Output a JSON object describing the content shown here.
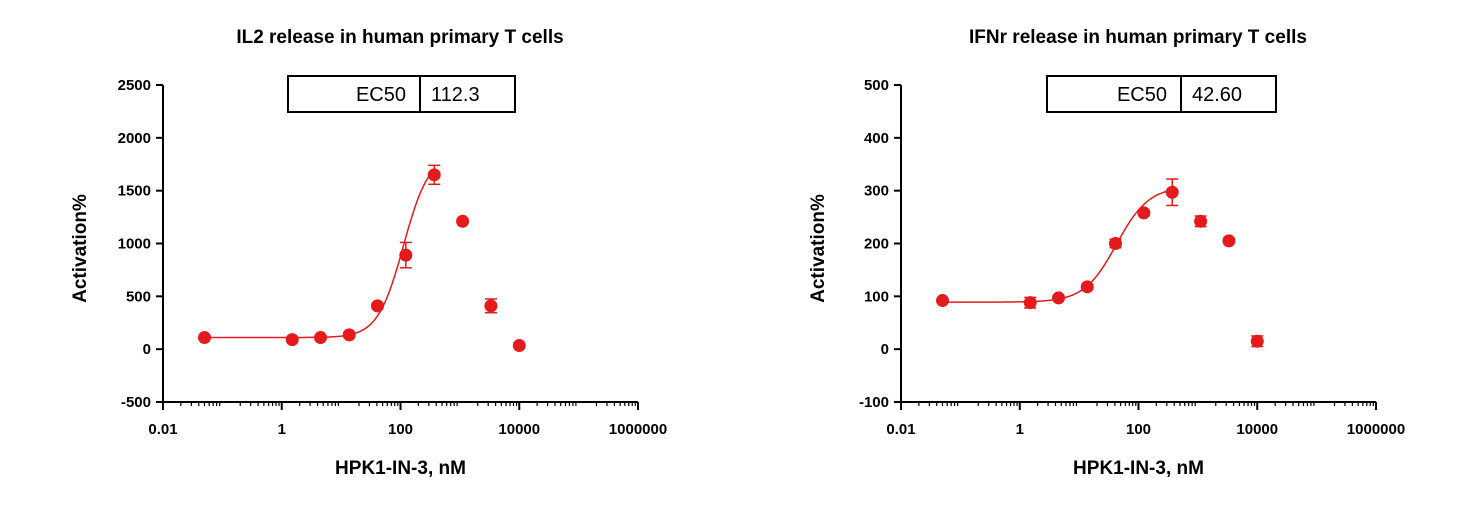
{
  "chart_data": [
    {
      "type": "scatter",
      "title": "IL2 release in human primary T cells",
      "xlabel": "HPK1-IN-3, nM",
      "ylabel": "Activation%",
      "xscale": "log",
      "xlim": [
        0.01,
        1000000
      ],
      "ylim": [
        -500,
        2500
      ],
      "xticks": [
        0.01,
        1,
        100,
        10000,
        1000000
      ],
      "xtick_labels": [
        "0.01",
        "1",
        "100",
        "10000",
        "1000000"
      ],
      "yticks": [
        -500,
        0,
        500,
        1000,
        1500,
        2000,
        2500
      ],
      "ytick_labels": [
        "-500",
        "0",
        "500",
        "1000",
        "1500",
        "2000",
        "2500"
      ],
      "grid": false,
      "color": "#e41a1c",
      "annotation": {
        "label": "EC50",
        "value": "112.3"
      },
      "series": [
        {
          "x": [
            0.05,
            1.5,
            4.5,
            13.7,
            41,
            123,
            370,
            1111,
            3333,
            10000
          ],
          "y": [
            110,
            90,
            110,
            135,
            410,
            890,
            1650,
            1210,
            410,
            35
          ],
          "err": [
            0,
            20,
            20,
            20,
            25,
            120,
            90,
            0,
            65,
            0
          ]
        }
      ],
      "fit": {
        "bottom": 110,
        "top": 1850,
        "ec50": 112.3,
        "hill": 2.0,
        "x_end": 370
      }
    },
    {
      "type": "scatter",
      "title": "IFNr release in human primary T cells",
      "xlabel": "HPK1-IN-3, nM",
      "ylabel": "Activation%",
      "xscale": "log",
      "xlim": [
        0.01,
        1000000
      ],
      "ylim": [
        -100,
        500
      ],
      "xticks": [
        0.01,
        1,
        100,
        10000,
        1000000
      ],
      "xtick_labels": [
        "0.01",
        "1",
        "100",
        "10000",
        "1000000"
      ],
      "yticks": [
        -100,
        0,
        100,
        200,
        300,
        400,
        500
      ],
      "ytick_labels": [
        "-100",
        "0",
        "100",
        "200",
        "300",
        "400",
        "500"
      ],
      "grid": false,
      "color": "#e41a1c",
      "annotation": {
        "label": "EC50",
        "value": "42.60"
      },
      "series": [
        {
          "x": [
            0.05,
            1.5,
            4.5,
            13.7,
            41,
            123,
            370,
            1111,
            3333,
            10000
          ],
          "y": [
            92,
            88,
            97,
            118,
            200,
            258,
            297,
            242,
            205,
            15
          ],
          "err": [
            0,
            10,
            0,
            0,
            8,
            0,
            25,
            10,
            0,
            10
          ]
        }
      ],
      "fit": {
        "bottom": 89,
        "top": 308,
        "ec50": 42.6,
        "hill": 1.6,
        "x_end": 370
      }
    }
  ]
}
